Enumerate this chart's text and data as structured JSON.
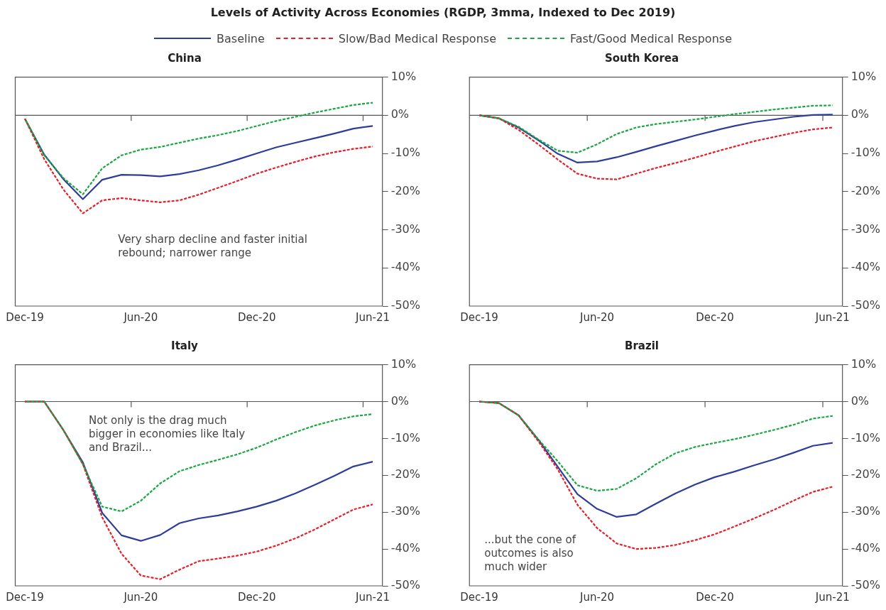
{
  "chart_data": [
    {
      "type": "other",
      "title": "Levels of Activity Across Economies (RGDP, 3mma, Indexed to Dec 2019)"
    },
    {
      "type": "line",
      "title": "China",
      "legend": "top",
      "marker": "none",
      "annotations": [
        "Very sharp decline and faster initial rebound; narrower range"
      ],
      "categories": [
        "Dec-19",
        null,
        null,
        null,
        null,
        null,
        "Jun-20",
        null,
        null,
        null,
        null,
        null,
        "Dec-20",
        null,
        null,
        null,
        null,
        null,
        "Jun-21"
      ],
      "ylim": [
        -50,
        10
      ],
      "yticks": [
        {
          "value": 10,
          "label": "10%"
        },
        {
          "value": 0,
          "label": "0%"
        },
        {
          "value": -10,
          "label": "-10%"
        },
        {
          "value": -20,
          "label": "-20%"
        },
        {
          "value": -30,
          "label": "-30%"
        },
        {
          "value": -40,
          "label": "-40%"
        },
        {
          "value": -50,
          "label": "-50%"
        }
      ],
      "ref_lines": [
        {
          "axis": "y",
          "value": 0
        }
      ],
      "series": [
        {
          "name": "Baseline",
          "color": "#2e3d98",
          "line_style": "solid",
          "values": [
            -0.9,
            -10.3,
            -16.8,
            -22.0,
            -16.9,
            -15.6,
            -15.7,
            -16.0,
            -15.4,
            -14.4,
            -13.1,
            -11.6,
            -10.0,
            -8.4,
            -7.2,
            -6.0,
            -4.8,
            -3.5,
            -2.8
          ]
        },
        {
          "name": "Slow/Bad Medical Response",
          "color": "#e3202a",
          "line_style": "dashed",
          "values": [
            -0.9,
            -11.5,
            -19.5,
            -25.7,
            -22.3,
            -21.7,
            -22.3,
            -22.8,
            -22.3,
            -20.8,
            -19.0,
            -17.2,
            -15.3,
            -13.7,
            -12.2,
            -10.8,
            -9.7,
            -8.8,
            -8.2
          ]
        },
        {
          "name": "Fast/Good Medical Response",
          "color": "#1aa641",
          "line_style": "dashed",
          "values": [
            -0.9,
            -10.5,
            -16.5,
            -20.7,
            -13.9,
            -10.5,
            -9.0,
            -8.3,
            -7.2,
            -6.1,
            -5.2,
            -4.1,
            -2.8,
            -1.5,
            -0.4,
            0.7,
            1.7,
            2.7,
            3.3
          ]
        }
      ]
    },
    {
      "type": "line",
      "title": "South Korea",
      "marker": "none",
      "categories": [
        "Dec-19",
        null,
        null,
        null,
        null,
        null,
        "Jun-20",
        null,
        null,
        null,
        null,
        null,
        "Dec-20",
        null,
        null,
        null,
        null,
        null,
        "Jun-21"
      ],
      "ylim": [
        -50,
        10
      ],
      "yticks": [
        {
          "value": 10,
          "label": "10%"
        },
        {
          "value": 0,
          "label": "0%"
        },
        {
          "value": -10,
          "label": "-10%"
        },
        {
          "value": -20,
          "label": "-20%"
        },
        {
          "value": -30,
          "label": "-30%"
        },
        {
          "value": -40,
          "label": "-40%"
        },
        {
          "value": -50,
          "label": "-50%"
        }
      ],
      "ref_lines": [
        {
          "axis": "y",
          "value": 0
        }
      ],
      "series": [
        {
          "color": "#2e3d98",
          "line_style": "solid",
          "values": [
            0,
            -0.8,
            -3.2,
            -6.5,
            -10.1,
            -12.4,
            -12.1,
            -11.0,
            -9.6,
            -8.1,
            -6.7,
            -5.3,
            -4.0,
            -2.8,
            -1.8,
            -1.1,
            -0.4,
            0.1,
            0.2
          ]
        },
        {
          "color": "#e3202a",
          "line_style": "dashed",
          "values": [
            0,
            -0.8,
            -3.8,
            -7.6,
            -11.6,
            -15.3,
            -16.6,
            -16.8,
            -15.3,
            -13.8,
            -12.5,
            -11.1,
            -9.6,
            -8.2,
            -6.8,
            -5.7,
            -4.6,
            -3.7,
            -3.2
          ]
        },
        {
          "color": "#1aa641",
          "line_style": "dashed",
          "values": [
            0,
            -0.8,
            -3.0,
            -6.3,
            -9.3,
            -9.8,
            -7.6,
            -4.9,
            -3.2,
            -2.3,
            -1.7,
            -1.1,
            -0.4,
            0.3,
            0.9,
            1.5,
            2.0,
            2.5,
            2.6
          ]
        }
      ]
    },
    {
      "type": "line",
      "title": "Italy",
      "marker": "none",
      "annotations": [
        "Not only is the drag much bigger in economies like Italy and Brazil..."
      ],
      "categories": [
        "Dec-19",
        null,
        null,
        null,
        null,
        null,
        "Jun-20",
        null,
        null,
        null,
        null,
        null,
        "Dec-20",
        null,
        null,
        null,
        null,
        null,
        "Jun-21"
      ],
      "ylim": [
        -50,
        10
      ],
      "yticks": [
        {
          "value": 10,
          "label": "10%"
        },
        {
          "value": 0,
          "label": "0%"
        },
        {
          "value": -10,
          "label": "-10%"
        },
        {
          "value": -20,
          "label": "-20%"
        },
        {
          "value": -30,
          "label": "-30%"
        },
        {
          "value": -40,
          "label": "-40%"
        },
        {
          "value": -50,
          "label": "-50%"
        }
      ],
      "ref_lines": [
        {
          "axis": "y",
          "value": 0
        }
      ],
      "series": [
        {
          "color": "#2e3d98",
          "line_style": "solid",
          "values": [
            0,
            0,
            -7.8,
            -16.5,
            -30.2,
            -36.3,
            -37.8,
            -36.2,
            -33.0,
            -31.7,
            -30.9,
            -29.8,
            -28.5,
            -26.9,
            -24.9,
            -22.6,
            -20.2,
            -17.6,
            -16.3
          ]
        },
        {
          "color": "#e3202a",
          "line_style": "dashed",
          "values": [
            0,
            0,
            -7.8,
            -17.0,
            -31.4,
            -41.3,
            -47.2,
            -48.2,
            -45.6,
            -43.3,
            -42.6,
            -41.8,
            -40.7,
            -39.1,
            -37.1,
            -34.7,
            -32.0,
            -29.3,
            -27.9
          ]
        },
        {
          "color": "#1aa641",
          "line_style": "dashed",
          "values": [
            0,
            0,
            -7.8,
            -17.0,
            -28.5,
            -29.8,
            -26.9,
            -22.2,
            -18.9,
            -17.2,
            -15.8,
            -14.3,
            -12.5,
            -10.3,
            -8.3,
            -6.5,
            -5.1,
            -4.0,
            -3.4
          ]
        }
      ]
    },
    {
      "type": "line",
      "title": "Brazil",
      "marker": "none",
      "annotations": [
        "...but the cone of outcomes is also much wider"
      ],
      "categories": [
        "Dec-19",
        null,
        null,
        null,
        null,
        null,
        "Jun-20",
        null,
        null,
        null,
        null,
        null,
        "Dec-20",
        null,
        null,
        null,
        null,
        null,
        "Jun-21"
      ],
      "ylim": [
        -50,
        10
      ],
      "yticks": [
        {
          "value": 10,
          "label": "10%"
        },
        {
          "value": 0,
          "label": "0%"
        },
        {
          "value": -10,
          "label": "-10%"
        },
        {
          "value": -20,
          "label": "-20%"
        },
        {
          "value": -30,
          "label": "-30%"
        },
        {
          "value": -40,
          "label": "-40%"
        },
        {
          "value": -50,
          "label": "-50%"
        }
      ],
      "ref_lines": [
        {
          "axis": "y",
          "value": 0
        }
      ],
      "series": [
        {
          "color": "#2e3d98",
          "line_style": "solid",
          "values": [
            0,
            -0.4,
            -3.7,
            -10.3,
            -17.7,
            -25.1,
            -29.1,
            -31.3,
            -30.6,
            -27.7,
            -24.9,
            -22.5,
            -20.5,
            -19.0,
            -17.3,
            -15.7,
            -13.9,
            -12.0,
            -11.2
          ]
        },
        {
          "color": "#e3202a",
          "line_style": "dashed",
          "values": [
            0,
            -0.4,
            -3.7,
            -10.7,
            -18.4,
            -28.0,
            -34.3,
            -38.5,
            -40.0,
            -39.7,
            -38.9,
            -37.6,
            -36.0,
            -33.9,
            -31.7,
            -29.4,
            -26.9,
            -24.5,
            -23.1
          ]
        },
        {
          "color": "#1aa641",
          "line_style": "dashed",
          "values": [
            0,
            -0.4,
            -3.7,
            -10.2,
            -16.2,
            -22.7,
            -24.2,
            -23.7,
            -20.8,
            -17.0,
            -14.0,
            -12.3,
            -11.2,
            -10.2,
            -9.0,
            -7.7,
            -6.3,
            -4.6,
            -3.9
          ]
        }
      ]
    }
  ]
}
